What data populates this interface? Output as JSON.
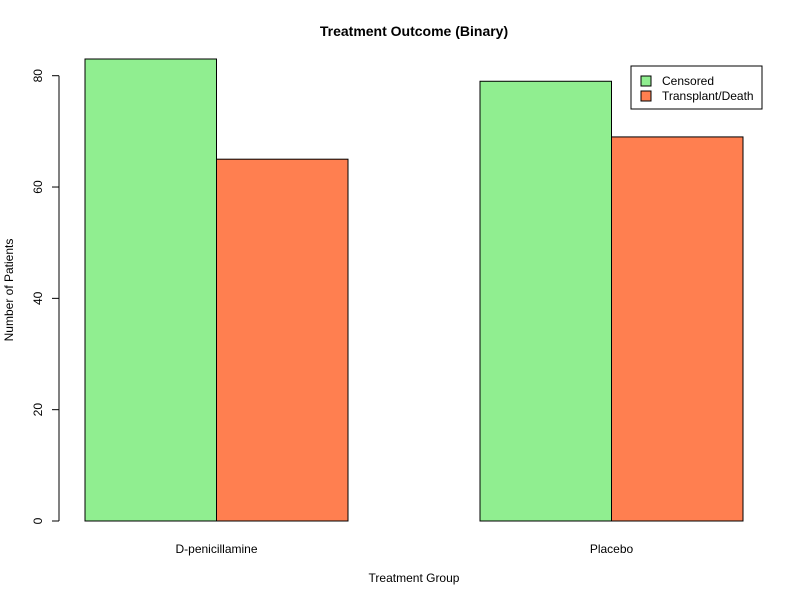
{
  "chart_data": {
    "type": "bar",
    "title": "Treatment Outcome (Binary)",
    "xlabel": "Treatment Group",
    "ylabel": "Number of Patients",
    "categories": [
      "D-penicillamine",
      "Placebo"
    ],
    "series": [
      {
        "name": "Censored",
        "values": [
          83,
          79
        ],
        "color": "#90EE90"
      },
      {
        "name": "Transplant/Death",
        "values": [
          65,
          69
        ],
        "color": "#FF7F50"
      }
    ],
    "ylim": [
      0,
      83
    ],
    "yticks": [
      0,
      20,
      40,
      60,
      80
    ],
    "grid": false,
    "legend_position": "top-right"
  }
}
